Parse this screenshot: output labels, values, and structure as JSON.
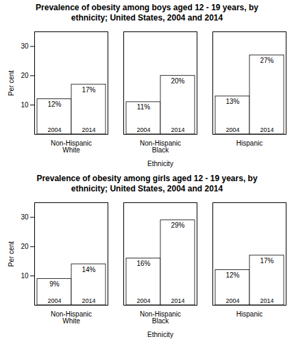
{
  "chart_data": [
    {
      "type": "bar",
      "title": "Prevalence of obesity among boys aged 12 - 19 years, by\nethnicity; United States, 2004 and 2014",
      "categories": [
        "Non-Hispanic\nWhite",
        "Non-Hispanic\nBlack",
        "Hispanic"
      ],
      "series": [
        {
          "name": "2004",
          "color": "#ffffff",
          "values": [
            12,
            11,
            13
          ],
          "value_labels": [
            "12%",
            "11%",
            "13%"
          ]
        },
        {
          "name": "2014",
          "color": "#ffffff",
          "values": [
            17,
            20,
            27
          ],
          "value_labels": [
            "17%",
            "20%",
            "27%"
          ]
        }
      ],
      "xlabel": "Ethnicity",
      "ylabel": "Per cent",
      "ylim": [
        0,
        35
      ],
      "yticks": [
        10,
        20,
        30
      ],
      "data_labels": true
    },
    {
      "type": "bar",
      "title": "Prevalence of obesity among girls aged 12 - 19 years, by\nethnicity; United States, 2004 and 2014",
      "categories": [
        "Non-Hispanic\nWhite",
        "Non-Hispanic\nBlack",
        "Hispanic"
      ],
      "series": [
        {
          "name": "2004",
          "color": "#ffffff",
          "values": [
            9,
            16,
            12
          ],
          "value_labels": [
            "9%",
            "16%",
            "12%"
          ]
        },
        {
          "name": "2014",
          "color": "#ffffff",
          "values": [
            14,
            29,
            17
          ],
          "value_labels": [
            "14%",
            "29%",
            "17%"
          ]
        }
      ],
      "xlabel": "Ethnicity",
      "ylabel": "Per cent",
      "ylim": [
        0,
        35
      ],
      "yticks": [
        10,
        20,
        30
      ],
      "data_labels": true
    }
  ]
}
